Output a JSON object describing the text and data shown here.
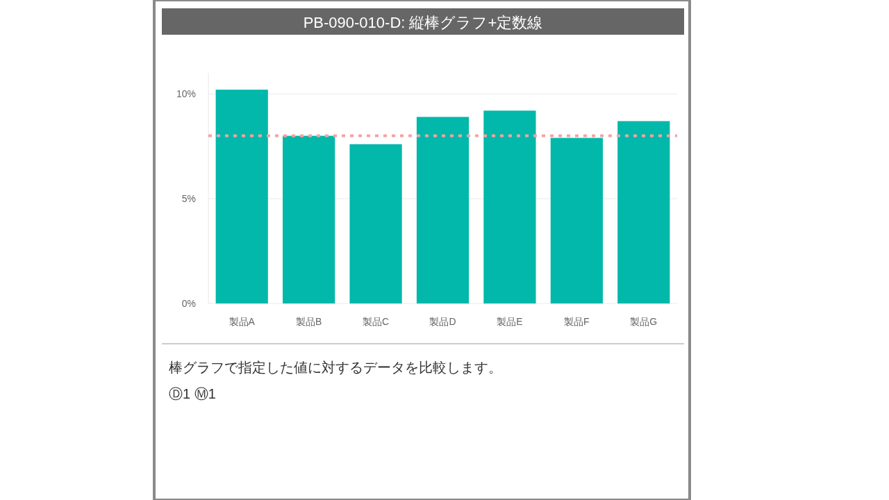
{
  "chart_data": {
    "type": "bar",
    "title": "PB-090-010-D: 縦棒グラフ+定数線",
    "categories": [
      "製品A",
      "製品B",
      "製品C",
      "製品D",
      "製品E",
      "製品F",
      "製品G"
    ],
    "values": [
      10.2,
      8.0,
      7.6,
      8.9,
      9.2,
      7.9,
      8.7
    ],
    "color": "#01b8aa",
    "ylim": [
      0,
      11
    ],
    "yticks": [
      {
        "value": 0,
        "label": "0%"
      },
      {
        "value": 5,
        "label": "5%"
      },
      {
        "value": 10,
        "label": "10%"
      }
    ],
    "grid": "y",
    "ref_lines": [
      {
        "axis": "y",
        "value": 8,
        "color": "#f4a3a3",
        "line_style": "dotted"
      }
    ],
    "annotations": [
      "棒グラフで指定した値に対するデータを比較します。",
      "Ⓓ1 Ⓜ1"
    ]
  }
}
